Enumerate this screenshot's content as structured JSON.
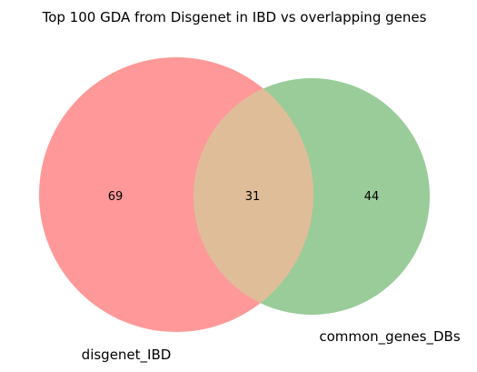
{
  "title": "Top 100 GDA from Disgenet in IBD vs overlapping genes",
  "sets": [
    {
      "name": "disgenet_IBD",
      "only_count": "69",
      "color": "#ff9999"
    },
    {
      "name": "common_genes_DBs",
      "only_count": "44",
      "color": "#99cc99"
    }
  ],
  "intersection": {
    "count": "31",
    "color": "#e0bd99"
  },
  "colors": {
    "set_a": "#ff9999",
    "set_b": "#99cc99",
    "overlap": "#e0bd99",
    "text": "#000000",
    "background": "#ffffff"
  }
}
